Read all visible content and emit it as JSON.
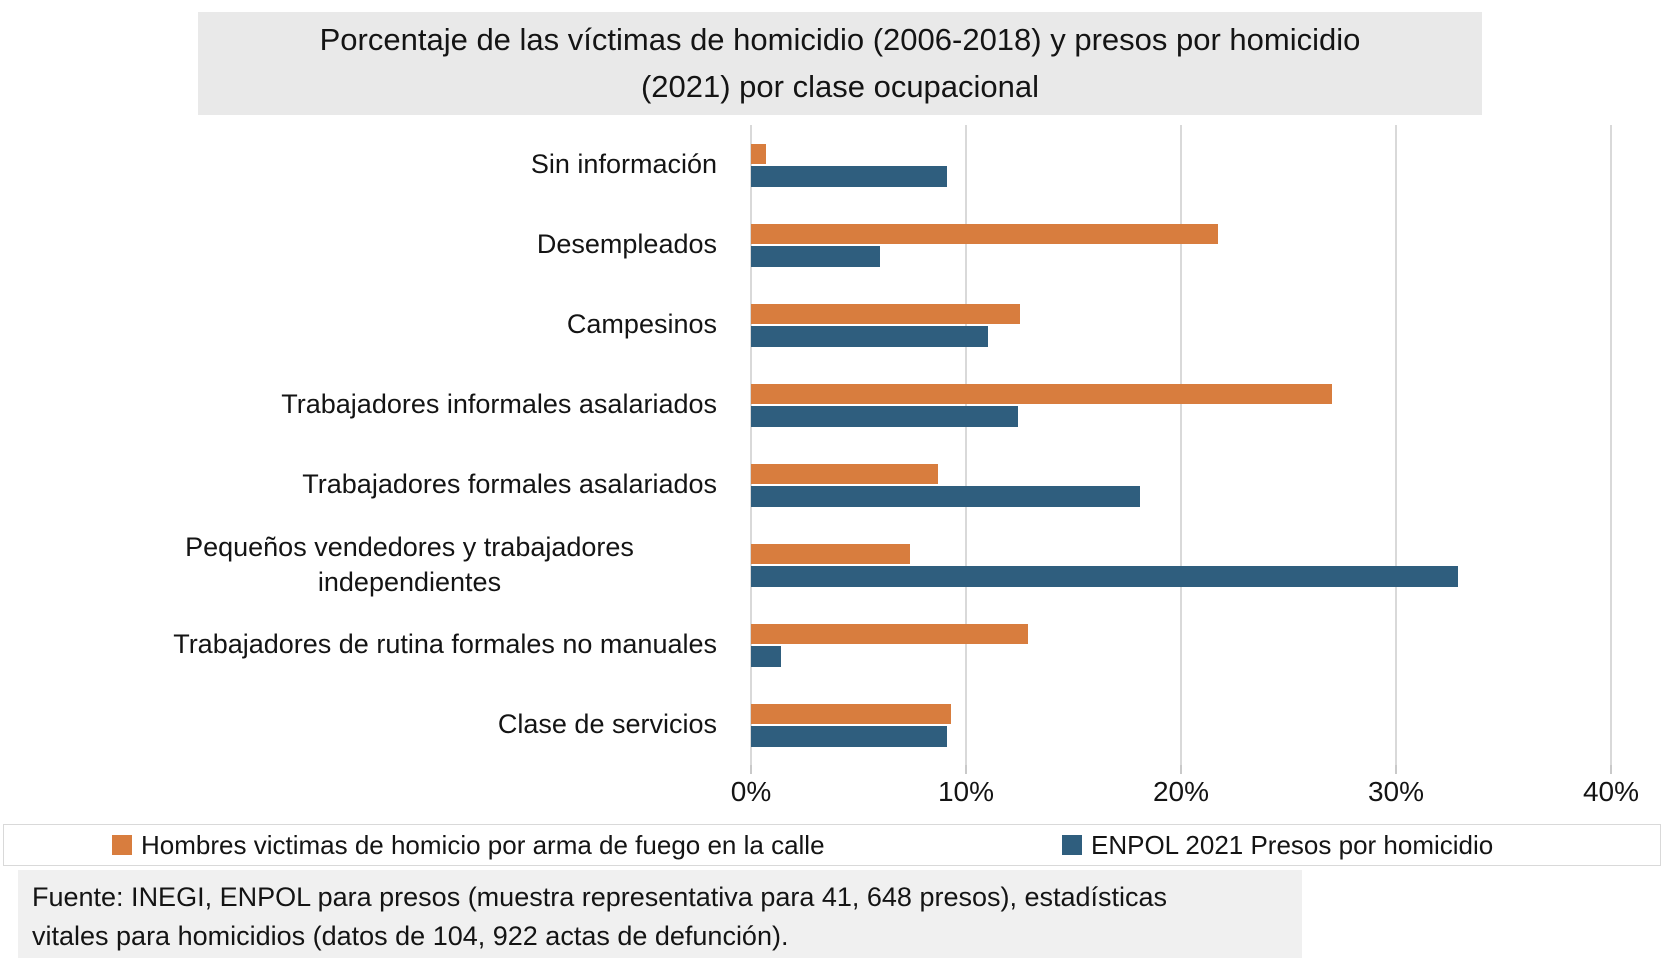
{
  "title": {
    "lines": [
      "Porcentaje de las víctimas de homicidio (2006-2018) y presos por homicidio",
      "(2021) por clase ocupacional"
    ]
  },
  "legend": {
    "items": [
      {
        "label": "Hombres victimas de homicio por arma de fuego en la calle",
        "color": "#D87D3E"
      },
      {
        "label": "ENPOL 2021 Presos por homicidio",
        "color": "#2F5E7E"
      }
    ]
  },
  "source": {
    "lines": [
      "Fuente: INEGI, ENPOL para presos (muestra representativa para 41, 648 presos), estadísticas",
      "vitales para homicidios (datos de 104, 922 actas de defunción)."
    ]
  },
  "colors": {
    "victims_orange": "#D87D3E",
    "prisoners_blue": "#2F5E7E",
    "gridline": "#D9D9D9",
    "title_background": "#E9E9E9",
    "footer_background": "#F0F0F0"
  },
  "chart_data": {
    "type": "bar",
    "orientation": "horizontal",
    "title": "Porcentaje de las víctimas de homicidio (2006-2018) y presos por homicidio (2021) por clase ocupacional",
    "categories": [
      "Sin información",
      "Desempleados",
      "Campesinos",
      "Trabajadores informales asalariados",
      "Trabajadores formales asalariados",
      "Pequeños vendedores y trabajadores independientes",
      "Trabajadores de rutina formales no manuales",
      "Clase de servicios"
    ],
    "series": [
      {
        "name": "Hombres victimas de homicio por arma de fuego en la calle",
        "color": "#D87D3E",
        "values": [
          0.7,
          21.7,
          12.5,
          27.0,
          8.7,
          7.4,
          12.9,
          9.3
        ]
      },
      {
        "name": "ENPOL 2021 Presos por homicidio",
        "color": "#2F5E7E",
        "values": [
          9.1,
          6.0,
          11.0,
          12.4,
          18.1,
          32.9,
          1.4,
          9.1
        ]
      }
    ],
    "x_ticks": [
      "0%",
      "10%",
      "20%",
      "30%",
      "40%"
    ],
    "xlim": [
      0,
      40
    ],
    "xlabel": "",
    "ylabel": "",
    "grid": true,
    "legend_position": "bottom"
  }
}
